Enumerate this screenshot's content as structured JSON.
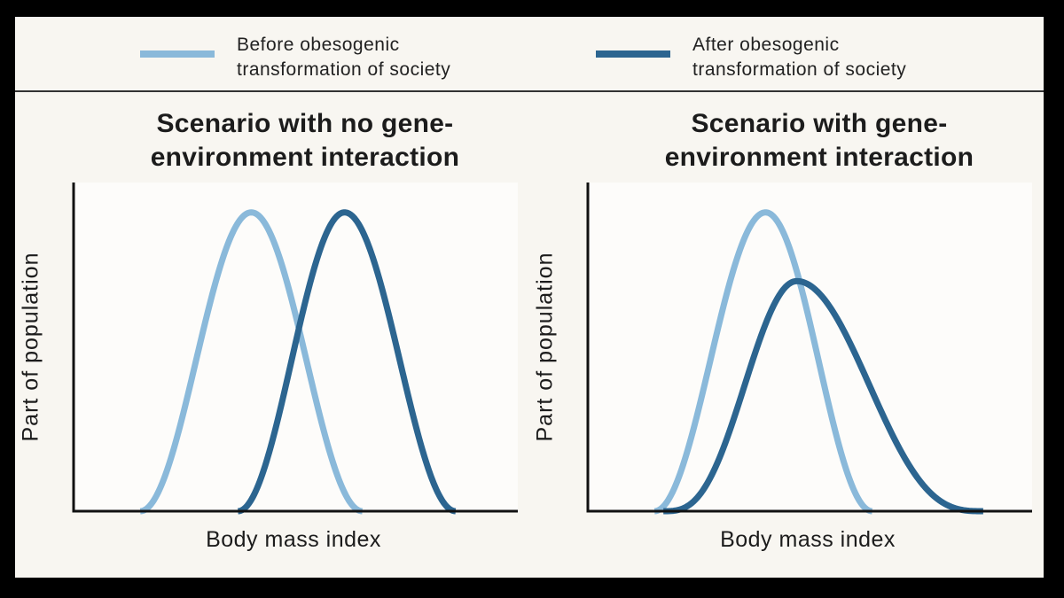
{
  "legend": [
    {
      "label": "Before obesogenic\ntransformation of society",
      "color": "#8ab9da"
    },
    {
      "label": "After obesogenic\ntransformation of society",
      "color": "#2c6590"
    }
  ],
  "chart_data": [
    {
      "type": "line",
      "title": "Scenario with no gene-\nenvironment interaction",
      "xlabel": "Body mass index",
      "ylabel": "Part of population",
      "x_ticks_shown": false,
      "y_ticks_shown": false,
      "xlim": [
        0,
        100
      ],
      "ylim": [
        0,
        1.1
      ],
      "series": [
        {
          "name": "Before obesogenic transformation of society",
          "color": "#8ab9da",
          "shape": "bell",
          "start": 15,
          "peak": 40,
          "end": 65,
          "height": 1.0,
          "peak_sharpness": 1.0
        },
        {
          "name": "After obesogenic transformation of society",
          "color": "#2c6590",
          "shape": "bell",
          "start": 37,
          "peak": 61,
          "end": 86,
          "height": 1.0,
          "peak_sharpness": 1.0
        }
      ]
    },
    {
      "type": "line",
      "title": "Scenario with gene-\nenvironment interaction",
      "xlabel": "Body mass index",
      "ylabel": "Part of population",
      "x_ticks_shown": false,
      "y_ticks_shown": false,
      "xlim": [
        0,
        100
      ],
      "ylim": [
        0,
        1.1
      ],
      "series": [
        {
          "name": "Before obesogenic transformation of society",
          "color": "#8ab9da",
          "shape": "bell",
          "start": 15,
          "peak": 40,
          "end": 64,
          "height": 1.0,
          "peak_sharpness": 1.0
        },
        {
          "name": "After obesogenic transformation of society",
          "color": "#2c6590",
          "shape": "bell",
          "start": 17,
          "peak": 47,
          "end": 89,
          "height": 0.77,
          "peak_sharpness": 1.5
        }
      ]
    }
  ]
}
